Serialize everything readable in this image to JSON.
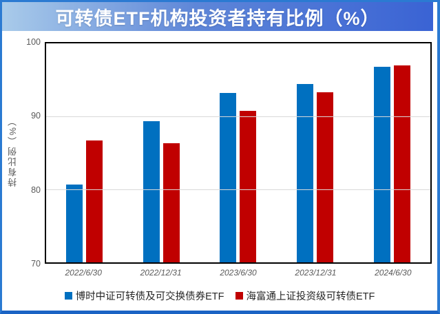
{
  "title": "可转债ETF机构投资者持有比例（%）",
  "frame": {
    "border_color": "#2b7ad2",
    "border_bottom_color": "#1a63c4",
    "banner_gradient_left": "#a9cbea",
    "banner_gradient_right": "#3a63d4",
    "banner_text_color": "#ffffff"
  },
  "chart_data": {
    "type": "bar",
    "title": "可转债ETF机构投资者持有比例（%）",
    "categories": [
      "2022/6/30",
      "2022/12/31",
      "2023/6/30",
      "2023/12/31",
      "2024/6/30"
    ],
    "series": [
      {
        "name": "博时中证可转债及可交换债券ETF",
        "color": "#0070C0",
        "values": [
          80.7,
          89.3,
          93.2,
          94.4,
          96.8
        ]
      },
      {
        "name": "海富通上证投资级可转债ETF",
        "color": "#C00000",
        "values": [
          86.7,
          86.3,
          90.8,
          93.3,
          97.0
        ]
      }
    ],
    "xlabel": "",
    "ylabel": "持有比例（%）",
    "ylim": [
      70,
      100
    ],
    "yticks": [
      100,
      90,
      80,
      70
    ],
    "grid": "horizontal",
    "grid_color": "#d9d9d9",
    "axis_color": "#000000",
    "tick_label_color": "#595959",
    "legend_position": "bottom"
  }
}
